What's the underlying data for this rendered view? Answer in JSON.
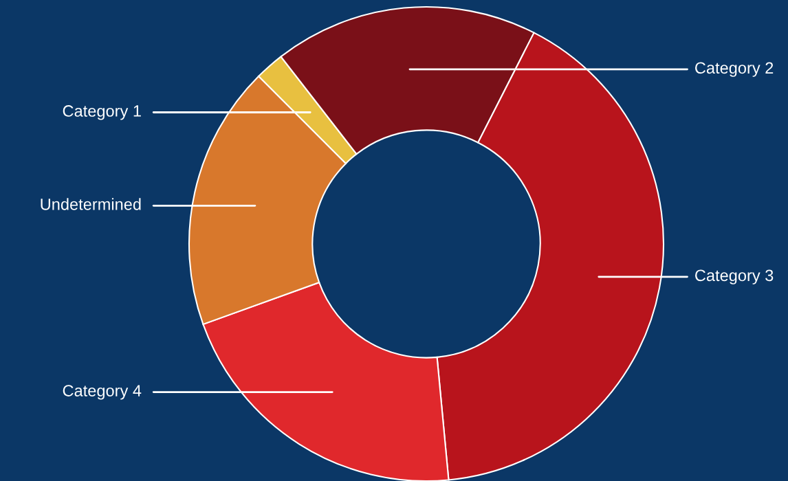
{
  "chart_data": {
    "type": "donut",
    "categories": [
      "Category 1",
      "Category 2",
      "Category 3",
      "Category 4",
      "Undetermined"
    ],
    "values": [
      2,
      18,
      41,
      21,
      18
    ],
    "colors": [
      "#e8c040",
      "#7a1018",
      "#b8141c",
      "#e0282c",
      "#d8782c"
    ],
    "legend": false
  }
}
